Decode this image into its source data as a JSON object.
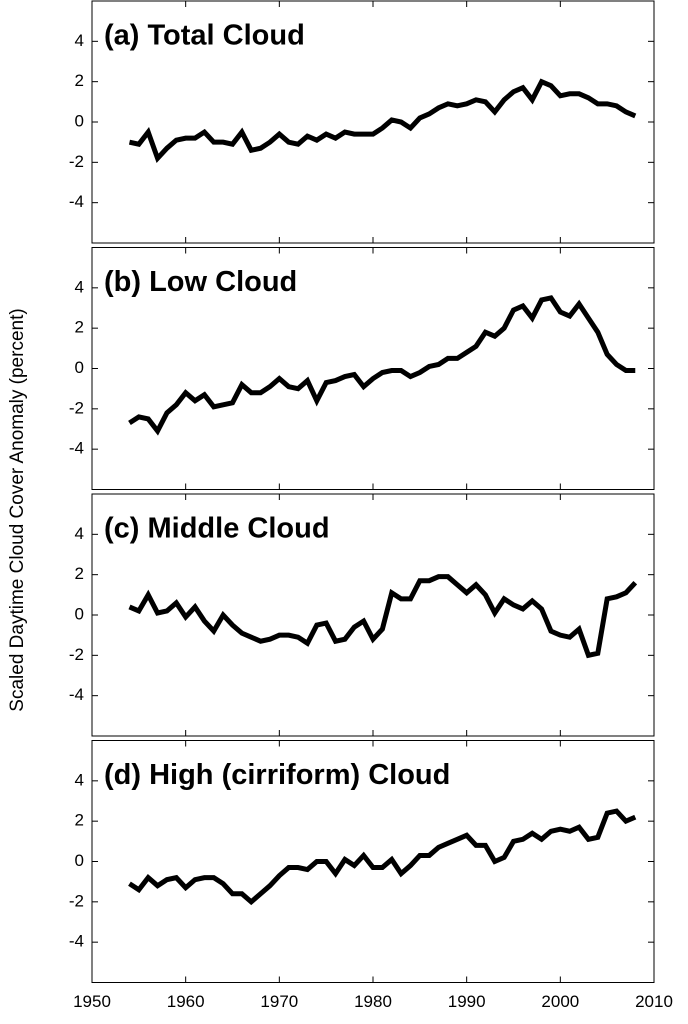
{
  "ylabel": "Scaled Daytime Cloud Cover Anomaly (percent)",
  "chart_data": [
    {
      "type": "line",
      "title": "(a) Total Cloud",
      "x": [
        1954,
        1955,
        1956,
        1957,
        1958,
        1959,
        1960,
        1961,
        1962,
        1963,
        1964,
        1965,
        1966,
        1967,
        1968,
        1969,
        1970,
        1971,
        1972,
        1973,
        1974,
        1975,
        1976,
        1977,
        1978,
        1979,
        1980,
        1981,
        1982,
        1983,
        1984,
        1985,
        1986,
        1987,
        1988,
        1989,
        1990,
        1991,
        1992,
        1993,
        1994,
        1995,
        1996,
        1997,
        1998,
        1999,
        2000,
        2001,
        2002,
        2003,
        2004,
        2005,
        2006,
        2007,
        2008
      ],
      "series": [
        {
          "color": "#000000",
          "values": [
            -1,
            -1.1,
            -0.5,
            -1.8,
            -1.3,
            -0.9,
            -0.8,
            -0.8,
            -0.5,
            -1.0,
            -1.0,
            -1.1,
            -0.5,
            -1.4,
            -1.3,
            -1.0,
            -0.6,
            -1.0,
            -1.1,
            -0.7,
            -0.9,
            -0.6,
            -0.8,
            -0.5,
            -0.6,
            -0.6,
            -0.6,
            -0.3,
            0.1,
            0,
            -0.3,
            0.2,
            0.4,
            0.7,
            0.9,
            0.8,
            0.9,
            1.1,
            1.0,
            0.5,
            1.1,
            1.5,
            1.7,
            1.1,
            2.0,
            1.8,
            1.3,
            1.4,
            1.4,
            1.2,
            0.9,
            0.9,
            0.8,
            0.5,
            0.3
          ]
        }
      ],
      "xlim": [
        1950,
        2010
      ],
      "xticks": [
        1950,
        1960,
        1970,
        1980,
        1990,
        2000,
        2010
      ],
      "ylim": [
        -6,
        6
      ],
      "yticks": [
        -4,
        -2,
        0,
        2,
        4
      ]
    },
    {
      "type": "line",
      "title": "(b) Low Cloud",
      "x": [
        1954,
        1955,
        1956,
        1957,
        1958,
        1959,
        1960,
        1961,
        1962,
        1963,
        1964,
        1965,
        1966,
        1967,
        1968,
        1969,
        1970,
        1971,
        1972,
        1973,
        1974,
        1975,
        1976,
        1977,
        1978,
        1979,
        1980,
        1981,
        1982,
        1983,
        1984,
        1985,
        1986,
        1987,
        1988,
        1989,
        1990,
        1991,
        1992,
        1993,
        1994,
        1995,
        1996,
        1997,
        1998,
        1999,
        2000,
        2001,
        2002,
        2003,
        2004,
        2005,
        2006,
        2007,
        2008
      ],
      "series": [
        {
          "color": "#000000",
          "values": [
            -2.7,
            -2.4,
            -2.5,
            -3.1,
            -2.2,
            -1.8,
            -1.2,
            -1.6,
            -1.3,
            -1.9,
            -1.8,
            -1.7,
            -0.8,
            -1.2,
            -1.2,
            -0.9,
            -0.5,
            -0.9,
            -1.0,
            -0.6,
            -1.6,
            -0.7,
            -0.6,
            -0.4,
            -0.3,
            -0.9,
            -0.5,
            -0.2,
            -0.1,
            -0.1,
            -0.4,
            -0.2,
            0.1,
            0.2,
            0.5,
            0.5,
            0.8,
            1.1,
            1.8,
            1.6,
            2.0,
            2.9,
            3.1,
            2.5,
            3.4,
            3.5,
            2.8,
            2.6,
            3.2,
            2.5,
            1.8,
            0.7,
            0.2,
            -0.1,
            -0.1
          ]
        }
      ],
      "xlim": [
        1950,
        2010
      ],
      "xticks": [
        1950,
        1960,
        1970,
        1980,
        1990,
        2000,
        2010
      ],
      "ylim": [
        -6,
        6
      ],
      "yticks": [
        -4,
        -2,
        0,
        2,
        4
      ]
    },
    {
      "type": "line",
      "title": "(c) Middle Cloud",
      "x": [
        1954,
        1955,
        1956,
        1957,
        1958,
        1959,
        1960,
        1961,
        1962,
        1963,
        1964,
        1965,
        1966,
        1967,
        1968,
        1969,
        1970,
        1971,
        1972,
        1973,
        1974,
        1975,
        1976,
        1977,
        1978,
        1979,
        1980,
        1981,
        1982,
        1983,
        1984,
        1985,
        1986,
        1987,
        1988,
        1989,
        1990,
        1991,
        1992,
        1993,
        1994,
        1995,
        1996,
        1997,
        1998,
        1999,
        2000,
        2001,
        2002,
        2003,
        2004,
        2005,
        2006,
        2007,
        2008
      ],
      "series": [
        {
          "color": "#000000",
          "values": [
            0.4,
            0.2,
            1.0,
            0.1,
            0.2,
            0.6,
            -0.1,
            0.4,
            -0.3,
            -0.8,
            0,
            -0.5,
            -0.9,
            -1.1,
            -1.3,
            -1.2,
            -1.0,
            -1.0,
            -1.1,
            -1.4,
            -0.5,
            -0.4,
            -1.3,
            -1.2,
            -0.6,
            -0.3,
            -1.2,
            -0.7,
            1.1,
            0.8,
            0.8,
            1.7,
            1.7,
            1.9,
            1.9,
            1.5,
            1.1,
            1.5,
            1.0,
            0.1,
            0.8,
            0.5,
            0.3,
            0.7,
            0.3,
            -0.8,
            -1.0,
            -1.1,
            -0.7,
            -2.0,
            -1.9,
            0.8,
            0.9,
            1.1,
            1.6
          ]
        }
      ],
      "xlim": [
        1950,
        2010
      ],
      "xticks": [
        1950,
        1960,
        1970,
        1980,
        1990,
        2000,
        2010
      ],
      "ylim": [
        -6,
        6
      ],
      "yticks": [
        -4,
        -2,
        0,
        2,
        4
      ]
    },
    {
      "type": "line",
      "title": "(d) High (cirriform) Cloud",
      "x": [
        1954,
        1955,
        1956,
        1957,
        1958,
        1959,
        1960,
        1961,
        1962,
        1963,
        1964,
        1965,
        1966,
        1967,
        1968,
        1969,
        1970,
        1971,
        1972,
        1973,
        1974,
        1975,
        1976,
        1977,
        1978,
        1979,
        1980,
        1981,
        1982,
        1983,
        1984,
        1985,
        1986,
        1987,
        1988,
        1989,
        1990,
        1991,
        1992,
        1993,
        1994,
        1995,
        1996,
        1997,
        1998,
        1999,
        2000,
        2001,
        2002,
        2003,
        2004,
        2005,
        2006,
        2007,
        2008
      ],
      "series": [
        {
          "color": "#000000",
          "values": [
            -1.1,
            -1.4,
            -0.8,
            -1.2,
            -0.9,
            -0.8,
            -1.3,
            -0.9,
            -0.8,
            -0.8,
            -1.1,
            -1.6,
            -1.6,
            -2.0,
            -1.6,
            -1.2,
            -0.7,
            -0.3,
            -0.3,
            -0.4,
            0,
            0,
            -0.6,
            0.1,
            -0.2,
            0.3,
            -0.3,
            -0.3,
            0.1,
            -0.6,
            -0.2,
            0.3,
            0.3,
            0.7,
            0.9,
            1.1,
            1.3,
            0.8,
            0.8,
            0,
            0.2,
            1.0,
            1.1,
            1.4,
            1.1,
            1.5,
            1.6,
            1.5,
            1.7,
            1.1,
            1.2,
            2.4,
            2.5,
            2.0,
            2.2
          ]
        }
      ],
      "xlim": [
        1950,
        2010
      ],
      "xticks": [
        1950,
        1960,
        1970,
        1980,
        1990,
        2000,
        2010
      ],
      "ylim": [
        -6,
        6
      ],
      "yticks": [
        -4,
        -2,
        0,
        2,
        4
      ]
    }
  ]
}
